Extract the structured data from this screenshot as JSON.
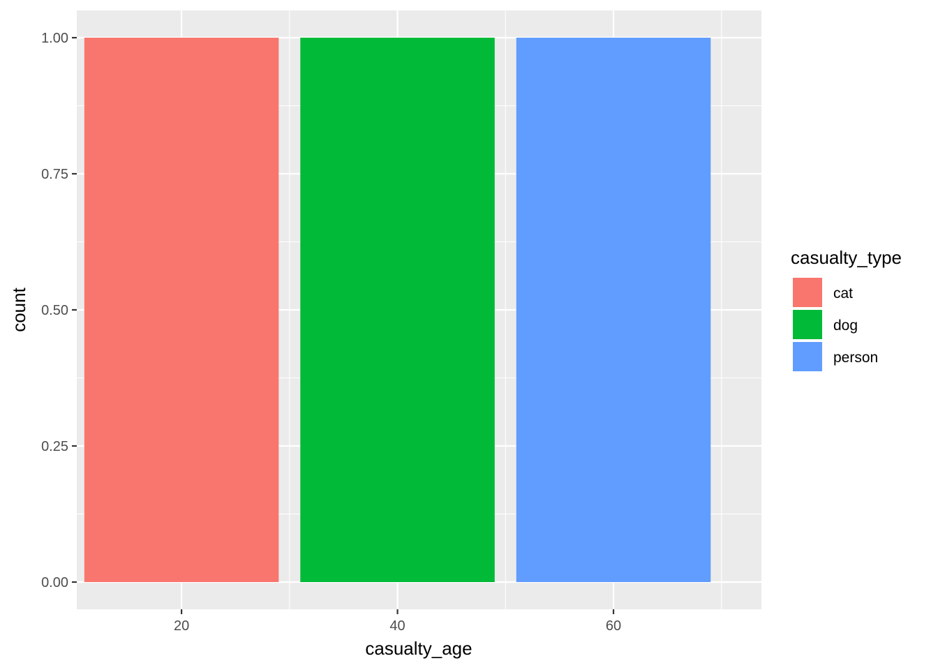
{
  "chart_data": {
    "type": "bar",
    "xlabel": "casualty_age",
    "ylabel": "count",
    "x_ticks": [
      20,
      40,
      60
    ],
    "y_ticks": [
      "0.00",
      "0.25",
      "0.50",
      "0.75",
      "1.00"
    ],
    "xlim": [
      10.3,
      73.7
    ],
    "ylim": [
      -0.05,
      1.05
    ],
    "bar_width": 18,
    "grid": true,
    "legend_position": "right",
    "legend_title": "casualty_type",
    "series": [
      {
        "name": "cat",
        "x": 20,
        "value": 1,
        "color": "#F8766D"
      },
      {
        "name": "dog",
        "x": 40,
        "value": 1,
        "color": "#00BA38"
      },
      {
        "name": "person",
        "x": 60,
        "value": 1,
        "color": "#619CFF"
      }
    ],
    "panel_background": "#EBEBEB",
    "grid_color": "#FFFFFF"
  }
}
